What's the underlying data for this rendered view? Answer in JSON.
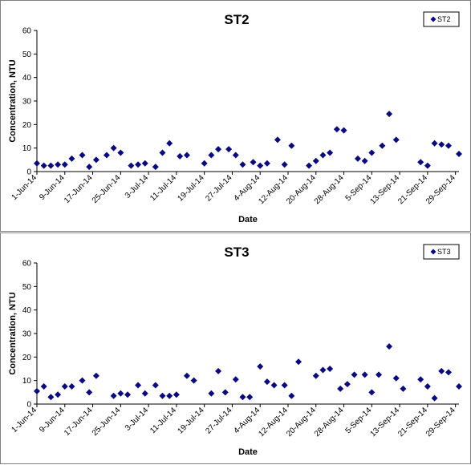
{
  "chart_data": [
    {
      "type": "scatter",
      "title": "ST2",
      "xlabel": "Date",
      "ylabel": "Concentration, NTU",
      "ylim": [
        0,
        60
      ],
      "yticks": [
        0,
        10,
        20,
        30,
        40,
        50,
        60
      ],
      "xlim": [
        "2014-06-01",
        "2014-09-30"
      ],
      "xtick_labels": [
        "1-Jun-14",
        "9-Jun-14",
        "17-Jun-14",
        "25-Jun-14",
        "3-Jul-14",
        "11-Jul-14",
        "19-Jul-14",
        "27-Jul-14",
        "4-Aug-14",
        "12-Aug-14",
        "20-Aug-14",
        "28-Aug-14",
        "5-Sep-14",
        "13-Sep-14",
        "21-Sep-14",
        "29-Sep-14"
      ],
      "grid": false,
      "legend": "top-right",
      "marker_color": "#0a0a80",
      "series": [
        {
          "name": "ST2",
          "points": [
            [
              "2014-06-01",
              3.5
            ],
            [
              "2014-06-03",
              2.5
            ],
            [
              "2014-06-05",
              2.5
            ],
            [
              "2014-06-07",
              3.0
            ],
            [
              "2014-06-09",
              3.0
            ],
            [
              "2014-06-11",
              5.5
            ],
            [
              "2014-06-14",
              7.0
            ],
            [
              "2014-06-16",
              2.0
            ],
            [
              "2014-06-18",
              5.0
            ],
            [
              "2014-06-21",
              7.0
            ],
            [
              "2014-06-23",
              10.0
            ],
            [
              "2014-06-25",
              8.0
            ],
            [
              "2014-06-28",
              2.5
            ],
            [
              "2014-06-30",
              3.0
            ],
            [
              "2014-07-02",
              3.5
            ],
            [
              "2014-07-05",
              2.0
            ],
            [
              "2014-07-07",
              8.0
            ],
            [
              "2014-07-09",
              12.0
            ],
            [
              "2014-07-12",
              6.5
            ],
            [
              "2014-07-14",
              7.0
            ],
            [
              "2014-07-19",
              3.5
            ],
            [
              "2014-07-21",
              7.0
            ],
            [
              "2014-07-23",
              9.5
            ],
            [
              "2014-07-26",
              9.5
            ],
            [
              "2014-07-28",
              7.0
            ],
            [
              "2014-07-30",
              3.0
            ],
            [
              "2014-08-02",
              4.0
            ],
            [
              "2014-08-04",
              2.5
            ],
            [
              "2014-08-06",
              3.5
            ],
            [
              "2014-08-09",
              13.5
            ],
            [
              "2014-08-11",
              3.0
            ],
            [
              "2014-08-13",
              11.0
            ],
            [
              "2014-08-18",
              2.5
            ],
            [
              "2014-08-20",
              4.5
            ],
            [
              "2014-08-22",
              7.0
            ],
            [
              "2014-08-24",
              8.0
            ],
            [
              "2014-08-26",
              18.0
            ],
            [
              "2014-08-28",
              17.5
            ],
            [
              "2014-09-01",
              5.5
            ],
            [
              "2014-09-03",
              4.5
            ],
            [
              "2014-09-05",
              8.0
            ],
            [
              "2014-09-08",
              11.0
            ],
            [
              "2014-09-10",
              24.5
            ],
            [
              "2014-09-12",
              13.5
            ],
            [
              "2014-09-19",
              4.0
            ],
            [
              "2014-09-21",
              2.5
            ],
            [
              "2014-09-23",
              12.0
            ],
            [
              "2014-09-25",
              11.5
            ],
            [
              "2014-09-27",
              11.0
            ],
            [
              "2014-09-30",
              7.5
            ]
          ]
        }
      ]
    },
    {
      "type": "scatter",
      "title": "ST3",
      "xlabel": "Date",
      "ylabel": "Concentration, NTU",
      "ylim": [
        0,
        60
      ],
      "yticks": [
        0,
        10,
        20,
        30,
        40,
        50,
        60
      ],
      "xlim": [
        "2014-06-01",
        "2014-09-30"
      ],
      "xtick_labels": [
        "1-Jun-14",
        "9-Jun-14",
        "17-Jun-14",
        "25-Jun-14",
        "3-Jul-14",
        "11-Jul-14",
        "19-Jul-14",
        "27-Jul-14",
        "4-Aug-14",
        "12-Aug-14",
        "20-Aug-14",
        "28-Aug-14",
        "5-Sep-14",
        "13-Sep-14",
        "21-Sep-14",
        "29-Sep-14"
      ],
      "grid": false,
      "legend": "top-right",
      "marker_color": "#0a0a80",
      "series": [
        {
          "name": "ST3",
          "points": [
            [
              "2014-06-01",
              5.5
            ],
            [
              "2014-06-03",
              7.5
            ],
            [
              "2014-06-05",
              3.0
            ],
            [
              "2014-06-07",
              4.0
            ],
            [
              "2014-06-09",
              7.5
            ],
            [
              "2014-06-11",
              7.5
            ],
            [
              "2014-06-14",
              10.0
            ],
            [
              "2014-06-16",
              5.0
            ],
            [
              "2014-06-18",
              12.0
            ],
            [
              "2014-06-23",
              3.5
            ],
            [
              "2014-06-25",
              4.5
            ],
            [
              "2014-06-27",
              4.0
            ],
            [
              "2014-06-30",
              8.0
            ],
            [
              "2014-07-02",
              4.5
            ],
            [
              "2014-07-05",
              8.0
            ],
            [
              "2014-07-07",
              3.5
            ],
            [
              "2014-07-09",
              3.5
            ],
            [
              "2014-07-11",
              4.0
            ],
            [
              "2014-07-14",
              12.0
            ],
            [
              "2014-07-16",
              10.0
            ],
            [
              "2014-07-21",
              4.5
            ],
            [
              "2014-07-23",
              14.0
            ],
            [
              "2014-07-25",
              5.0
            ],
            [
              "2014-07-28",
              10.5
            ],
            [
              "2014-07-30",
              3.0
            ],
            [
              "2014-08-01",
              3.0
            ],
            [
              "2014-08-04",
              16.0
            ],
            [
              "2014-08-06",
              9.5
            ],
            [
              "2014-08-08",
              8.0
            ],
            [
              "2014-08-11",
              8.0
            ],
            [
              "2014-08-13",
              3.5
            ],
            [
              "2014-08-15",
              18.0
            ],
            [
              "2014-08-20",
              12.0
            ],
            [
              "2014-08-22",
              14.5
            ],
            [
              "2014-08-24",
              15.0
            ],
            [
              "2014-08-27",
              6.5
            ],
            [
              "2014-08-29",
              8.5
            ],
            [
              "2014-08-31",
              12.5
            ],
            [
              "2014-09-03",
              12.5
            ],
            [
              "2014-09-05",
              5.0
            ],
            [
              "2014-09-07",
              12.5
            ],
            [
              "2014-09-10",
              24.5
            ],
            [
              "2014-09-12",
              11.0
            ],
            [
              "2014-09-14",
              6.5
            ],
            [
              "2014-09-19",
              10.5
            ],
            [
              "2014-09-21",
              7.5
            ],
            [
              "2014-09-23",
              2.5
            ],
            [
              "2014-09-25",
              14.0
            ],
            [
              "2014-09-27",
              13.5
            ],
            [
              "2014-09-30",
              7.5
            ]
          ]
        }
      ]
    }
  ]
}
